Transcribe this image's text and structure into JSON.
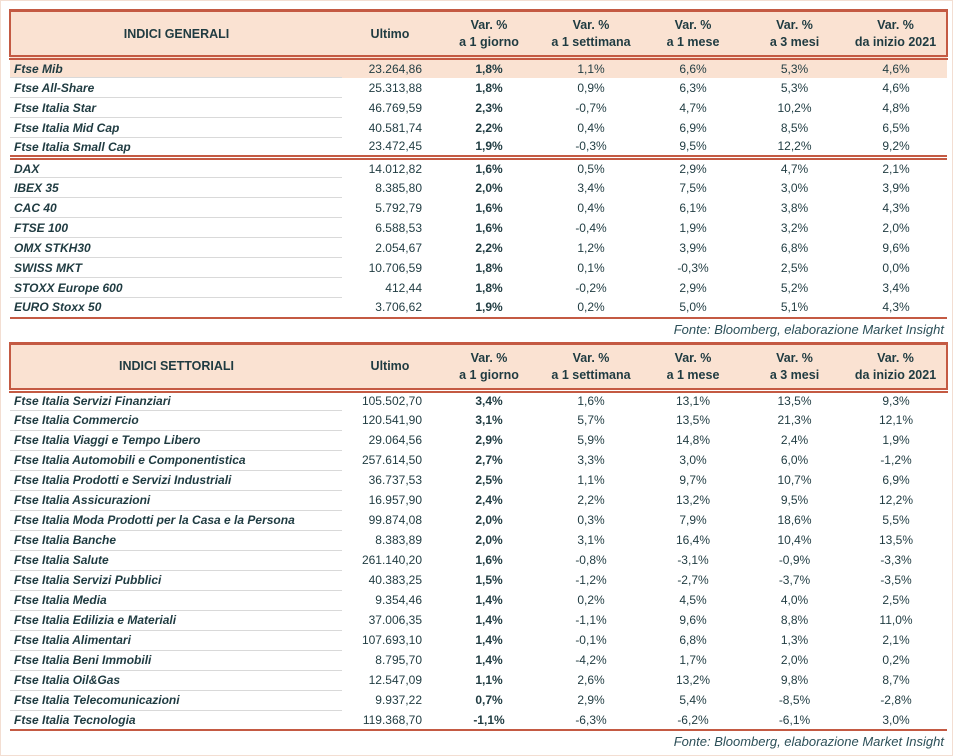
{
  "colors": {
    "accent": "#c45a43",
    "header_fill": "#fae2d2",
    "highlight_fill": "#fae2d2",
    "text": "#1f3b41",
    "gridline": "#d9d9d9",
    "source_note_text": "#2c4f58"
  },
  "labels": {
    "ultimo": "Ultimo",
    "var_top": "Var. %",
    "var_subs": [
      "a 1 giorno",
      "a 1 settimana",
      "a 1 mese",
      "a 3 mesi",
      "da inizio 2021"
    ]
  },
  "source_note": "Fonte: Bloomberg, elaborazione Market Insight",
  "tables": [
    {
      "id": "t1",
      "title": "INDICI GENERALI",
      "rows": [
        {
          "name": "Ftse Mib",
          "ultimo": "23.264,86",
          "vars": [
            "1,8%",
            "1,1%",
            "6,6%",
            "5,3%",
            "4,6%"
          ],
          "highlight": true
        },
        {
          "name": "Ftse All-Share",
          "ultimo": "25.313,88",
          "vars": [
            "1,8%",
            "0,9%",
            "6,3%",
            "5,3%",
            "4,6%"
          ]
        },
        {
          "name": "Ftse Italia Star",
          "ultimo": "46.769,59",
          "vars": [
            "2,3%",
            "-0,7%",
            "4,7%",
            "10,2%",
            "4,8%"
          ]
        },
        {
          "name": "Ftse Italia Mid Cap",
          "ultimo": "40.581,74",
          "vars": [
            "2,2%",
            "0,4%",
            "6,9%",
            "8,5%",
            "6,5%"
          ]
        },
        {
          "name": "Ftse Italia Small Cap",
          "ultimo": "23.472,45",
          "vars": [
            "1,9%",
            "-0,3%",
            "9,5%",
            "12,2%",
            "9,2%"
          ],
          "sep_after": true
        },
        {
          "name": "DAX",
          "ultimo": "14.012,82",
          "vars": [
            "1,6%",
            "0,5%",
            "2,9%",
            "4,7%",
            "2,1%"
          ]
        },
        {
          "name": "IBEX 35",
          "ultimo": "8.385,80",
          "vars": [
            "2,0%",
            "3,4%",
            "7,5%",
            "3,0%",
            "3,9%"
          ]
        },
        {
          "name": "CAC 40",
          "ultimo": "5.792,79",
          "vars": [
            "1,6%",
            "0,4%",
            "6,1%",
            "3,8%",
            "4,3%"
          ]
        },
        {
          "name": "FTSE 100",
          "ultimo": "6.588,53",
          "vars": [
            "1,6%",
            "-0,4%",
            "1,9%",
            "3,2%",
            "2,0%"
          ]
        },
        {
          "name": "OMX STKH30",
          "ultimo": "2.054,67",
          "vars": [
            "2,2%",
            "1,2%",
            "3,9%",
            "6,8%",
            "9,6%"
          ]
        },
        {
          "name": "SWISS MKT",
          "ultimo": "10.706,59",
          "vars": [
            "1,8%",
            "0,1%",
            "-0,3%",
            "2,5%",
            "0,0%"
          ]
        },
        {
          "name": "STOXX Europe 600",
          "ultimo": "412,44",
          "vars": [
            "1,8%",
            "-0,2%",
            "2,9%",
            "5,2%",
            "3,4%"
          ]
        },
        {
          "name": "EURO Stoxx 50",
          "ultimo": "3.706,62",
          "vars": [
            "1,9%",
            "0,2%",
            "5,0%",
            "5,1%",
            "4,3%"
          ]
        }
      ]
    },
    {
      "id": "t2",
      "title": "INDICI SETTORIALI",
      "rows": [
        {
          "name": "Ftse Italia Servizi Finanziari",
          "ultimo": "105.502,70",
          "vars": [
            "3,4%",
            "1,6%",
            "13,1%",
            "13,5%",
            "9,3%"
          ]
        },
        {
          "name": "Ftse Italia Commercio",
          "ultimo": "120.541,90",
          "vars": [
            "3,1%",
            "5,7%",
            "13,5%",
            "21,3%",
            "12,1%"
          ]
        },
        {
          "name": "Ftse Italia Viaggi e Tempo Libero",
          "ultimo": "29.064,56",
          "vars": [
            "2,9%",
            "5,9%",
            "14,8%",
            "2,4%",
            "1,9%"
          ]
        },
        {
          "name": "Ftse Italia Automobili e Componentistica",
          "ultimo": "257.614,50",
          "vars": [
            "2,7%",
            "3,3%",
            "3,0%",
            "6,0%",
            "-1,2%"
          ]
        },
        {
          "name": "Ftse Italia Prodotti e Servizi Industriali",
          "ultimo": "36.737,53",
          "vars": [
            "2,5%",
            "1,1%",
            "9,7%",
            "10,7%",
            "6,9%"
          ]
        },
        {
          "name": "Ftse Italia Assicurazioni",
          "ultimo": "16.957,90",
          "vars": [
            "2,4%",
            "2,2%",
            "13,2%",
            "9,5%",
            "12,2%"
          ]
        },
        {
          "name": "Ftse Italia Moda Prodotti per la Casa e la Persona",
          "ultimo": "99.874,08",
          "vars": [
            "2,0%",
            "0,3%",
            "7,9%",
            "18,6%",
            "5,5%"
          ]
        },
        {
          "name": "Ftse Italia Banche",
          "ultimo": "8.383,89",
          "vars": [
            "2,0%",
            "3,1%",
            "16,4%",
            "10,4%",
            "13,5%"
          ]
        },
        {
          "name": "Ftse Italia Salute",
          "ultimo": "261.140,20",
          "vars": [
            "1,6%",
            "-0,8%",
            "-3,1%",
            "-0,9%",
            "-3,3%"
          ]
        },
        {
          "name": "Ftse Italia Servizi Pubblici",
          "ultimo": "40.383,25",
          "vars": [
            "1,5%",
            "-1,2%",
            "-2,7%",
            "-3,7%",
            "-3,5%"
          ]
        },
        {
          "name": "Ftse Italia Media",
          "ultimo": "9.354,46",
          "vars": [
            "1,4%",
            "0,2%",
            "4,5%",
            "4,0%",
            "2,5%"
          ]
        },
        {
          "name": "Ftse Italia Edilizia e Materiali",
          "ultimo": "37.006,35",
          "vars": [
            "1,4%",
            "-1,1%",
            "9,6%",
            "8,8%",
            "11,0%"
          ]
        },
        {
          "name": "Ftse Italia Alimentari",
          "ultimo": "107.693,10",
          "vars": [
            "1,4%",
            "-0,1%",
            "6,8%",
            "1,3%",
            "2,1%"
          ]
        },
        {
          "name": "Ftse Italia Beni Immobili",
          "ultimo": "8.795,70",
          "vars": [
            "1,4%",
            "-4,2%",
            "1,7%",
            "2,0%",
            "0,2%"
          ]
        },
        {
          "name": "Ftse Italia Oil&Gas",
          "ultimo": "12.547,09",
          "vars": [
            "1,1%",
            "2,6%",
            "13,2%",
            "9,8%",
            "8,7%"
          ]
        },
        {
          "name": "Ftse Italia Telecomunicazioni",
          "ultimo": "9.937,22",
          "vars": [
            "0,7%",
            "2,9%",
            "5,4%",
            "-8,5%",
            "-2,8%"
          ]
        },
        {
          "name": "Ftse Italia Tecnologia",
          "ultimo": "119.368,70",
          "vars": [
            "-1,1%",
            "-6,3%",
            "-6,2%",
            "-6,1%",
            "3,0%"
          ]
        }
      ]
    }
  ]
}
